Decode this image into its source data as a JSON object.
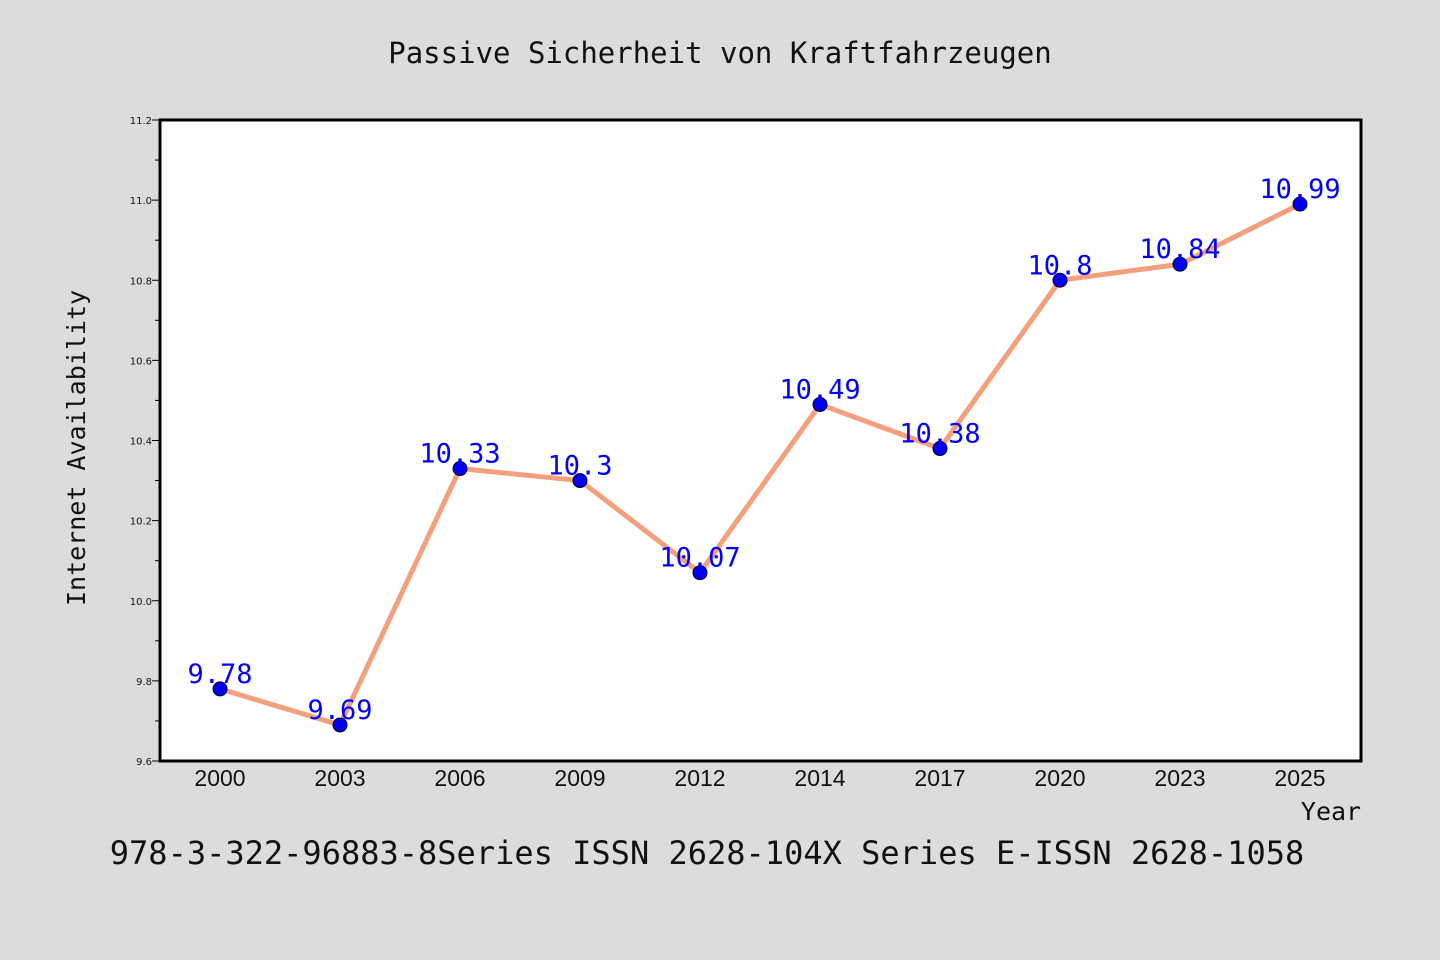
{
  "chart_data": {
    "type": "line",
    "title": "Passive Sicherheit von Kraftfahrzeugen",
    "xlabel": "Year",
    "ylabel": "Internet Availability",
    "footer": "978-3-322-96883-8Series ISSN 2628-104X Series E-ISSN 2628-1058",
    "categories": [
      "2000",
      "2003",
      "2006",
      "2009",
      "2012",
      "2014",
      "2017",
      "2020",
      "2023",
      "2025"
    ],
    "series": [
      {
        "values": [
          9.78,
          9.69,
          10.33,
          10.3,
          10.07,
          10.49,
          10.38,
          10.8,
          10.84,
          10.99
        ],
        "labels": [
          "9.78",
          "9.69",
          "10.33",
          "10.3",
          "10.07",
          "10.49",
          "10.38",
          "10.8",
          "10.84",
          "10.99"
        ]
      }
    ],
    "ylim": [
      9.6,
      11.2
    ],
    "yticks": [
      "9.6",
      "9.8",
      "10.0",
      "10.2",
      "10.4",
      "10.6",
      "10.8",
      "11.0",
      "11.2"
    ],
    "grid": false,
    "colors": {
      "line": "#f4a07c",
      "marker": "#0000ee",
      "data_label": "#0000ff",
      "background": "#dcdcdc",
      "plot_background": "#ffffff",
      "axis": "#000000"
    }
  }
}
